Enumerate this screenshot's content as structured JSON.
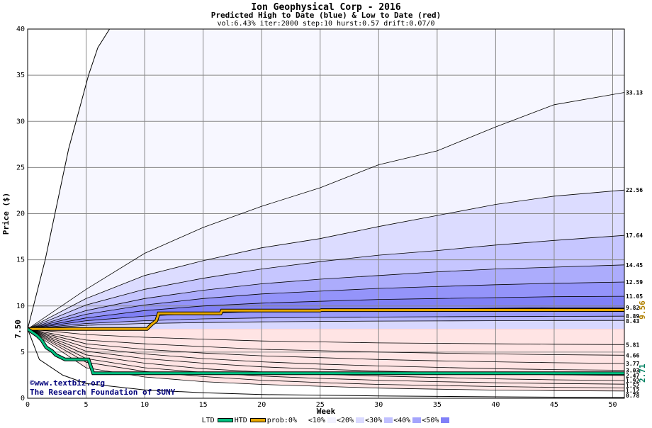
{
  "header": {
    "title": "Ion Geophysical Corp - 2016",
    "subtitle": "Predicted High to Date (blue) &  Low to Date (red)",
    "params": "vol:6.43% iter:2000 step:10 hurst:0.57 drift:0.07/0"
  },
  "credits": {
    "site": "©www.textbiz.org",
    "org": "The Research Foundation of SUNY"
  },
  "chart_data": {
    "type": "line",
    "title": "Ion Geophysical Corp - 2016",
    "xlabel": "Week",
    "ylabel": "Price ($)",
    "xlim": [
      0,
      51
    ],
    "ylim": [
      0,
      40
    ],
    "x_ticks": [
      0,
      5,
      10,
      15,
      20,
      25,
      30,
      35,
      40,
      45,
      50
    ],
    "y_ticks": [
      0,
      5,
      10,
      15,
      20,
      25,
      30,
      35,
      40
    ],
    "grid": true,
    "start_label": "7.50",
    "start_price": 7.5,
    "high_percentiles": [
      {
        "end": 33.13,
        "label": "33.13",
        "pts": [
          [
            0,
            7.5
          ],
          [
            5,
            11.8
          ],
          [
            10,
            15.7
          ],
          [
            15,
            18.5
          ],
          [
            20,
            20.8
          ],
          [
            25,
            22.8
          ],
          [
            30,
            25.3
          ],
          [
            35,
            26.8
          ],
          [
            40,
            29.4
          ],
          [
            45,
            31.8
          ],
          [
            51,
            33.13
          ]
        ]
      },
      {
        "end": 22.56,
        "label": "22.56",
        "pts": [
          [
            0,
            7.5
          ],
          [
            5,
            10.8
          ],
          [
            10,
            13.3
          ],
          [
            15,
            14.9
          ],
          [
            20,
            16.3
          ],
          [
            25,
            17.3
          ],
          [
            30,
            18.6
          ],
          [
            35,
            19.8
          ],
          [
            40,
            21.0
          ],
          [
            45,
            21.9
          ],
          [
            51,
            22.56
          ]
        ]
      },
      {
        "end": 17.64,
        "label": "17.64",
        "pts": [
          [
            0,
            7.5
          ],
          [
            5,
            10.1
          ],
          [
            10,
            11.8
          ],
          [
            15,
            13.0
          ],
          [
            20,
            14.0
          ],
          [
            25,
            14.8
          ],
          [
            30,
            15.5
          ],
          [
            35,
            16.0
          ],
          [
            40,
            16.6
          ],
          [
            45,
            17.1
          ],
          [
            51,
            17.64
          ]
        ]
      },
      {
        "end": 14.45,
        "label": "14.45",
        "pts": [
          [
            0,
            7.5
          ],
          [
            5,
            9.5
          ],
          [
            10,
            10.8
          ],
          [
            15,
            11.7
          ],
          [
            20,
            12.4
          ],
          [
            25,
            12.9
          ],
          [
            30,
            13.3
          ],
          [
            35,
            13.7
          ],
          [
            40,
            14.0
          ],
          [
            45,
            14.2
          ],
          [
            51,
            14.45
          ]
        ]
      },
      {
        "end": 12.59,
        "label": "12.59",
        "pts": [
          [
            0,
            7.5
          ],
          [
            5,
            9.1
          ],
          [
            10,
            10.1
          ],
          [
            15,
            10.8
          ],
          [
            20,
            11.3
          ],
          [
            25,
            11.6
          ],
          [
            30,
            11.9
          ],
          [
            35,
            12.1
          ],
          [
            40,
            12.3
          ],
          [
            45,
            12.45
          ],
          [
            51,
            12.59
          ]
        ]
      },
      {
        "end": 11.05,
        "label": "11.05",
        "pts": [
          [
            0,
            7.5
          ],
          [
            5,
            8.7
          ],
          [
            10,
            9.5
          ],
          [
            15,
            10.0
          ],
          [
            20,
            10.3
          ],
          [
            25,
            10.5
          ],
          [
            30,
            10.7
          ],
          [
            35,
            10.8
          ],
          [
            40,
            10.9
          ],
          [
            45,
            11.0
          ],
          [
            51,
            11.05
          ]
        ]
      },
      {
        "end": 9.82,
        "label": "9.82",
        "pts": [
          [
            0,
            7.5
          ],
          [
            5,
            8.4
          ],
          [
            10,
            8.9
          ],
          [
            15,
            9.2
          ],
          [
            20,
            9.4
          ],
          [
            25,
            9.5
          ],
          [
            30,
            9.6
          ],
          [
            35,
            9.7
          ],
          [
            40,
            9.75
          ],
          [
            45,
            9.8
          ],
          [
            51,
            9.82
          ]
        ]
      },
      {
        "end": 8.89,
        "label": "8.89",
        "pts": [
          [
            0,
            7.5
          ],
          [
            5,
            8.1
          ],
          [
            10,
            8.4
          ],
          [
            15,
            8.6
          ],
          [
            20,
            8.7
          ],
          [
            25,
            8.75
          ],
          [
            30,
            8.8
          ],
          [
            35,
            8.83
          ],
          [
            40,
            8.85
          ],
          [
            45,
            8.87
          ],
          [
            51,
            8.89
          ]
        ]
      },
      {
        "end": 8.43,
        "label": "8.43",
        "pts": [
          [
            0,
            7.5
          ],
          [
            5,
            7.9
          ],
          [
            10,
            8.1
          ],
          [
            15,
            8.2
          ],
          [
            20,
            8.28
          ],
          [
            25,
            8.32
          ],
          [
            30,
            8.36
          ],
          [
            35,
            8.38
          ],
          [
            40,
            8.4
          ],
          [
            45,
            8.42
          ],
          [
            51,
            8.43
          ]
        ]
      }
    ],
    "low_percentiles": [
      {
        "end": 5.81,
        "label": "5.81",
        "pts": [
          [
            0,
            7.5
          ],
          [
            5,
            6.9
          ],
          [
            10,
            6.6
          ],
          [
            15,
            6.4
          ],
          [
            20,
            6.2
          ],
          [
            25,
            6.1
          ],
          [
            30,
            6.0
          ],
          [
            35,
            5.95
          ],
          [
            40,
            5.9
          ],
          [
            45,
            5.85
          ],
          [
            51,
            5.81
          ]
        ]
      },
      {
        "end": 4.66,
        "label": "4.66",
        "pts": [
          [
            0,
            7.5
          ],
          [
            5,
            6.3
          ],
          [
            10,
            5.9
          ],
          [
            15,
            5.6
          ],
          [
            20,
            5.3
          ],
          [
            25,
            5.15
          ],
          [
            30,
            5.0
          ],
          [
            35,
            4.9
          ],
          [
            40,
            4.8
          ],
          [
            45,
            4.72
          ],
          [
            51,
            4.66
          ]
        ]
      },
      {
        "end": 3.77,
        "label": "3.77",
        "pts": [
          [
            0,
            7.5
          ],
          [
            5,
            5.9
          ],
          [
            10,
            5.3
          ],
          [
            15,
            4.9
          ],
          [
            20,
            4.6
          ],
          [
            25,
            4.4
          ],
          [
            30,
            4.2
          ],
          [
            35,
            4.05
          ],
          [
            40,
            3.95
          ],
          [
            45,
            3.85
          ],
          [
            51,
            3.77
          ]
        ]
      },
      {
        "end": 3.03,
        "label": "3.03",
        "pts": [
          [
            0,
            7.5
          ],
          [
            5,
            5.5
          ],
          [
            10,
            4.8
          ],
          [
            15,
            4.3
          ],
          [
            20,
            3.95
          ],
          [
            25,
            3.7
          ],
          [
            30,
            3.5
          ],
          [
            35,
            3.35
          ],
          [
            40,
            3.2
          ],
          [
            45,
            3.1
          ],
          [
            51,
            3.03
          ]
        ]
      },
      {
        "end": 2.47,
        "label": "2.47",
        "pts": [
          [
            0,
            7.5
          ],
          [
            5,
            5.1
          ],
          [
            10,
            4.3
          ],
          [
            15,
            3.8
          ],
          [
            20,
            3.4
          ],
          [
            25,
            3.15
          ],
          [
            30,
            2.95
          ],
          [
            35,
            2.8
          ],
          [
            40,
            2.65
          ],
          [
            45,
            2.55
          ],
          [
            51,
            2.47
          ]
        ]
      },
      {
        "end": 1.92,
        "label": "1.92",
        "pts": [
          [
            0,
            7.5
          ],
          [
            5,
            4.7
          ],
          [
            10,
            3.8
          ],
          [
            15,
            3.2
          ],
          [
            20,
            2.85
          ],
          [
            25,
            2.6
          ],
          [
            30,
            2.4
          ],
          [
            35,
            2.25
          ],
          [
            40,
            2.1
          ],
          [
            45,
            2.0
          ],
          [
            51,
            1.92
          ]
        ]
      },
      {
        "end": 1.52,
        "label": "1.52",
        "pts": [
          [
            0,
            7.5
          ],
          [
            5,
            4.3
          ],
          [
            10,
            3.3
          ],
          [
            15,
            2.8
          ],
          [
            20,
            2.4
          ],
          [
            25,
            2.15
          ],
          [
            30,
            1.95
          ],
          [
            35,
            1.8
          ],
          [
            40,
            1.68
          ],
          [
            45,
            1.6
          ],
          [
            51,
            1.52
          ]
        ]
      },
      {
        "end": 1.12,
        "label": "1.12",
        "pts": [
          [
            0,
            7.5
          ],
          [
            5,
            3.9
          ],
          [
            10,
            2.9
          ],
          [
            15,
            2.35
          ],
          [
            20,
            1.95
          ],
          [
            25,
            1.7
          ],
          [
            30,
            1.5
          ],
          [
            35,
            1.38
          ],
          [
            40,
            1.27
          ],
          [
            45,
            1.18
          ],
          [
            51,
            1.12
          ]
        ]
      },
      {
        "end": 0.78,
        "label": "0.78",
        "pts": [
          [
            0,
            7.5
          ],
          [
            5,
            3.3
          ],
          [
            10,
            2.3
          ],
          [
            15,
            1.8
          ],
          [
            20,
            1.5
          ],
          [
            25,
            1.3
          ],
          [
            30,
            1.1
          ],
          [
            35,
            0.98
          ],
          [
            40,
            0.88
          ],
          [
            45,
            0.82
          ],
          [
            51,
            0.78
          ]
        ]
      }
    ],
    "high_max": {
      "pts": [
        [
          0,
          7.5
        ],
        [
          1.5,
          15
        ],
        [
          3.5,
          27
        ],
        [
          5.2,
          35
        ],
        [
          6,
          38
        ],
        [
          7,
          40
        ]
      ]
    },
    "low_min": {
      "pts": [
        [
          0,
          7.5
        ],
        [
          1,
          4.2
        ],
        [
          3,
          2.5
        ],
        [
          5,
          1.6
        ],
        [
          10,
          0.9
        ],
        [
          15,
          0.6
        ],
        [
          20,
          0.4
        ],
        [
          30,
          0.25
        ],
        [
          40,
          0.15
        ],
        [
          51,
          0.08
        ]
      ]
    },
    "htd": {
      "end_label": "9.56",
      "color": "#e8a800",
      "pts": [
        [
          0,
          7.5
        ],
        [
          10.2,
          7.5
        ],
        [
          10.6,
          8.0
        ],
        [
          11,
          8.4
        ],
        [
          11.2,
          9.2
        ],
        [
          16.5,
          9.2
        ],
        [
          16.6,
          9.5
        ],
        [
          25,
          9.5
        ],
        [
          25.1,
          9.55
        ],
        [
          51,
          9.56
        ]
      ]
    },
    "ltd": {
      "end_label": "2.71",
      "color": "#00c080",
      "pts": [
        [
          0,
          7.5
        ],
        [
          0.8,
          6.8
        ],
        [
          1.2,
          6.3
        ],
        [
          1.6,
          5.5
        ],
        [
          2.1,
          5.1
        ],
        [
          2.4,
          4.7
        ],
        [
          3.2,
          4.2
        ],
        [
          5.2,
          4.2
        ],
        [
          5.6,
          2.71
        ],
        [
          51,
          2.71
        ]
      ]
    }
  },
  "legend": {
    "items": [
      {
        "label": "LTD",
        "color": "#00c080",
        "kind": "line"
      },
      {
        "label": "HTD",
        "color": "#e8a800",
        "kind": "line"
      },
      {
        "label": "prob:0%",
        "color": "#ffffff",
        "kind": "box"
      },
      {
        "label": "<10%",
        "color": "#f2f2ff",
        "kind": "box"
      },
      {
        "label": "<20%",
        "color": "#dadaff",
        "kind": "box"
      },
      {
        "label": "<30%",
        "color": "#c0c0ff",
        "kind": "box"
      },
      {
        "label": "<40%",
        "color": "#a4a4fc",
        "kind": "box"
      },
      {
        "label": "<50%",
        "color": "#8080f8",
        "kind": "box"
      }
    ]
  },
  "colors": {
    "high_bands": [
      "#f3f3ff",
      "#dcdcff",
      "#c6c6ff",
      "#acacfc",
      "#9494fa",
      "#8080f6",
      "#9a9afa",
      "#b8b8fd",
      "#d8d8ff"
    ],
    "low_bands": [
      "#fff0f0",
      "#ffe0e0",
      "#ffc8c8",
      "#ffb0b0",
      "#fb9a9a",
      "#f88888",
      "#fba0a0",
      "#ffc4c4",
      "#ffe4e4"
    ],
    "grid": "#888888"
  }
}
